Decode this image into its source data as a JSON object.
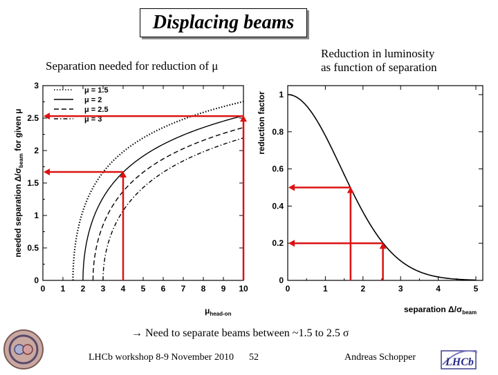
{
  "title": "Displacing beams",
  "subtitle_left": "Separation needed for reduction of μ",
  "subtitle_right_line1": "Reduction in luminosity",
  "subtitle_right_line2": "as function of separation",
  "conclusion": "→ Need to separate beams between ~1.5 to 2.5 σ",
  "footer": {
    "workshop": "LHCb workshop 8-9 November 2010",
    "page": "52",
    "author": "Andreas Schopper"
  },
  "logos": {
    "left": "cern-accelerator-logo",
    "right": "lhcb-logo",
    "right_text": "LHCb"
  },
  "colors": {
    "arrow": "#dd1111",
    "curve": "#000000"
  },
  "chart_data": [
    {
      "type": "line",
      "xlabel": "μhead-on",
      "ylabel": "needed separation Δ/σbeam for given μ",
      "xlim": [
        0,
        10
      ],
      "ylim": [
        0,
        3
      ],
      "x_ticks": [
        "0",
        "1",
        "2",
        "3",
        "4",
        "5",
        "6",
        "7",
        "8",
        "9",
        "10"
      ],
      "y_ticks": [
        "0",
        "0.5",
        "1",
        "1.5",
        "2",
        "2.5",
        "3"
      ],
      "legend_position": "top-left",
      "series": [
        {
          "name": "μ = 1.5",
          "mu": 1.5,
          "style": "dotted"
        },
        {
          "name": "μ = 2",
          "mu": 2,
          "style": "solid"
        },
        {
          "name": "μ = 2.5",
          "mu": 2.5,
          "style": "dashed"
        },
        {
          "name": "μ = 3",
          "mu": 3,
          "style": "dashdot"
        }
      ],
      "annotations": [
        {
          "x": 4,
          "y": 1.67
        },
        {
          "x": 10,
          "y": 2.53
        }
      ]
    },
    {
      "type": "line",
      "xlabel": "separation Δ/σbeam",
      "ylabel": "reduction factor",
      "xlim": [
        0,
        5
      ],
      "ylim": [
        0,
        1
      ],
      "x_ticks": [
        "0",
        "1",
        "2",
        "3",
        "4",
        "5"
      ],
      "y_ticks": [
        "0",
        "0.2",
        "0.4",
        "0.6",
        "0.8",
        "1"
      ],
      "series": [
        {
          "formula": "exp(-x^2/4)"
        }
      ],
      "annotations": [
        {
          "x": 1.67,
          "y": 0.5
        },
        {
          "x": 2.53,
          "y": 0.2
        }
      ]
    }
  ]
}
